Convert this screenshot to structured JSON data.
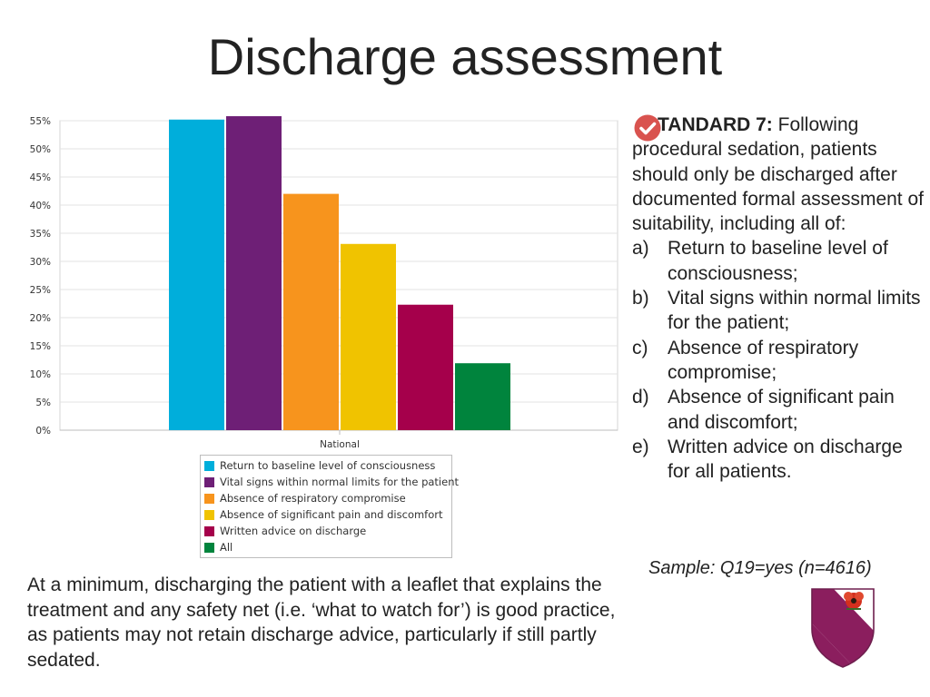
{
  "title": "Discharge assessment",
  "chart_data": {
    "type": "bar",
    "categories": [
      "National"
    ],
    "series": [
      {
        "name": "Return to baseline level of consciousness",
        "values": [
          55.2
        ],
        "color": "#00AEDB"
      },
      {
        "name": "Vital signs within normal limits for the patient",
        "values": [
          55.8
        ],
        "color": "#6E1F76"
      },
      {
        "name": "Absence of respiratory compromise",
        "values": [
          42.0
        ],
        "color": "#F7941D"
      },
      {
        "name": "Absence of significant pain and discomfort",
        "values": [
          33.1
        ],
        "color": "#F0C300"
      },
      {
        "name": "Written advice on discharge",
        "values": [
          22.3
        ],
        "color": "#A5004B"
      },
      {
        "name": "All",
        "values": [
          11.9
        ],
        "color": "#00843D"
      }
    ],
    "ylim": [
      0,
      55
    ],
    "yticks": [
      "0%",
      "5%",
      "10%",
      "15%",
      "20%",
      "25%",
      "30%",
      "35%",
      "40%",
      "45%",
      "50%",
      "55%"
    ],
    "xlabel": "",
    "ylabel": "",
    "grid": true,
    "legend": "bottom"
  },
  "standard": {
    "label": "STANDARD 7:",
    "intro": "Following procedural sedation, patients should only be discharged after documented formal assessment of suitability, including all of:",
    "items": [
      {
        "letter": "a)",
        "text": "Return to baseline level of consciousness;"
      },
      {
        "letter": "b)",
        "text": "Vital signs within normal limits for the patient;"
      },
      {
        "letter": "c)",
        "text": "Absence of respiratory compromise;"
      },
      {
        "letter": "d)",
        "text": "Absence of significant pain and discomfort;"
      },
      {
        "letter": "e)",
        "text": "Written advice on discharge for all patients."
      }
    ],
    "check_icon": "check-circle-icon",
    "check_color": "#D9534F"
  },
  "sample": "Sample: Q19=yes (n=4616)",
  "note": "At a minimum, discharging the patient with a leaflet that explains the treatment and any safety net (i.e. ‘what to watch for’) is good practice, as patients may not retain discharge advice, particularly if still partly sedated.",
  "crest": {
    "icon": "shield-crest-icon",
    "primary_color": "#8B1E5E",
    "flower_color": "#D32F1E"
  }
}
